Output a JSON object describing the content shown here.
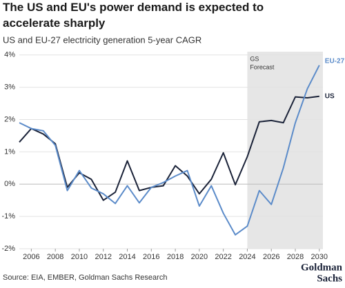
{
  "chart_data": {
    "type": "line",
    "title": "The US and EU's power demand is expected to accelerate sharply",
    "subtitle": "US and EU-27 electricity generation 5-year CAGR",
    "source": "Source: EIA, EMBER, Goldman Sachs Research",
    "logo": [
      "Goldman",
      "Sachs"
    ],
    "annotation": [
      "GS",
      "Forecast"
    ],
    "forecast_start": 2024,
    "x": [
      2005,
      2006,
      2007,
      2008,
      2009,
      2010,
      2011,
      2012,
      2013,
      2014,
      2015,
      2016,
      2017,
      2018,
      2019,
      2020,
      2021,
      2022,
      2023,
      2024,
      2025,
      2026,
      2027,
      2028,
      2029,
      2030
    ],
    "series": [
      {
        "name": "US",
        "color": "#1a2238",
        "values": [
          1.3,
          1.72,
          1.55,
          1.25,
          -0.1,
          0.35,
          0.15,
          -0.5,
          -0.25,
          0.72,
          -0.2,
          -0.1,
          -0.05,
          0.57,
          0.25,
          -0.3,
          0.15,
          0.97,
          -0.02,
          0.85,
          1.93,
          1.97,
          1.9,
          2.7,
          2.67,
          2.72
        ]
      },
      {
        "name": "EU-27",
        "color": "#5b8bc9",
        "values": [
          1.9,
          1.72,
          1.65,
          1.2,
          -0.2,
          0.42,
          -0.12,
          -0.3,
          -0.6,
          -0.05,
          -0.58,
          -0.1,
          0.05,
          0.25,
          0.42,
          -0.68,
          -0.05,
          -0.9,
          -1.57,
          -1.3,
          -0.2,
          -0.63,
          0.5,
          1.9,
          2.95,
          3.68
        ]
      }
    ],
    "xlim": [
      2005,
      2030.3
    ],
    "xticks": [
      2006,
      2008,
      2010,
      2012,
      2014,
      2016,
      2018,
      2020,
      2022,
      2024,
      2026,
      2028,
      2030
    ],
    "ylim": [
      -2,
      4.1
    ],
    "yticks": [
      {
        "value": -2,
        "label": "-2%"
      },
      {
        "value": -1,
        "label": "-1%"
      },
      {
        "value": 0,
        "label": "0%"
      },
      {
        "value": 1,
        "label": "1%"
      },
      {
        "value": 2,
        "label": "2%"
      },
      {
        "value": 3,
        "label": "3%"
      },
      {
        "value": 4,
        "label": "4%"
      }
    ],
    "grid": true
  }
}
